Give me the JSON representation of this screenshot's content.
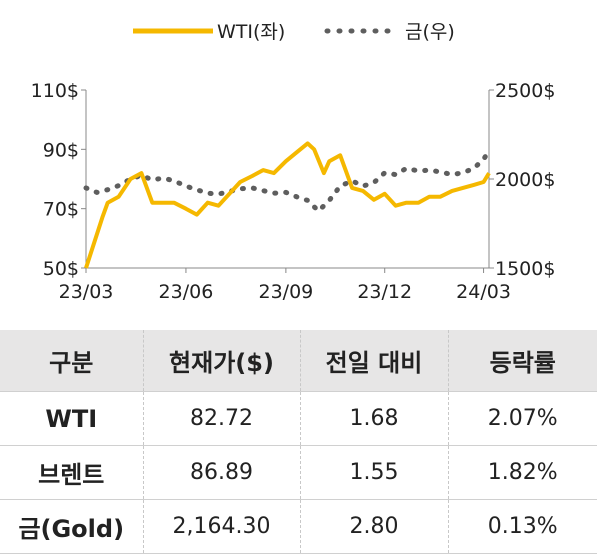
{
  "chart_data": {
    "type": "line",
    "x_ticks": [
      "23/03",
      "23/06",
      "23/09",
      "23/12",
      "24/03"
    ],
    "y_left": {
      "ticks": [
        "110$",
        "90$",
        "70$",
        "50$"
      ],
      "range": [
        50,
        110
      ]
    },
    "y_right": {
      "ticks": [
        "2500$",
        "2000$",
        "1500$"
      ],
      "range": [
        1500,
        2500
      ]
    },
    "colors": {
      "wti": "#f5b800",
      "gold": "#5e5e5e"
    },
    "series": [
      {
        "name": "WTI(좌)",
        "axis": "left",
        "x": [
          "23/03/01",
          "23/03/16",
          "23/03/21",
          "23/03/31",
          "23/04/11",
          "23/04/21",
          "23/05/01",
          "23/05/11",
          "23/05/21",
          "23/06/01",
          "23/06/11",
          "23/06/21",
          "23/07/01",
          "23/07/11",
          "23/07/21",
          "23/08/01",
          "23/08/11",
          "23/08/21",
          "23/09/01",
          "23/09/11",
          "23/09/21",
          "23/09/27",
          "23/10/06",
          "23/10/11",
          "23/10/21",
          "23/11/01",
          "23/11/11",
          "23/11/21",
          "23/12/01",
          "23/12/11",
          "23/12/21",
          "24/01/01",
          "24/01/11",
          "24/01/21",
          "24/02/01",
          "24/02/11",
          "24/02/21",
          "24/03/01",
          "24/03/06"
        ],
        "values": [
          50,
          67,
          72,
          74,
          80,
          82,
          72,
          72,
          72,
          70,
          68,
          72,
          71,
          75,
          79,
          81,
          83,
          82,
          86,
          89,
          92,
          90,
          82,
          86,
          88,
          77,
          76,
          73,
          75,
          71,
          72,
          72,
          74,
          74,
          76,
          77,
          78,
          79,
          82
        ]
      },
      {
        "name": "금(우)",
        "axis": "right",
        "x": [
          "23/03/01",
          "23/03/11",
          "23/03/21",
          "23/04/01",
          "23/04/11",
          "23/04/21",
          "23/05/01",
          "23/05/11",
          "23/05/21",
          "23/06/01",
          "23/06/11",
          "23/06/21",
          "23/07/01",
          "23/07/11",
          "23/07/21",
          "23/08/01",
          "23/08/11",
          "23/08/21",
          "23/09/01",
          "23/09/11",
          "23/09/21",
          "23/10/01",
          "23/10/11",
          "23/10/21",
          "23/11/01",
          "23/11/11",
          "23/11/21",
          "23/12/01",
          "23/12/11",
          "23/12/21",
          "24/01/01",
          "24/01/11",
          "24/01/21",
          "24/02/01",
          "24/02/11",
          "24/02/21",
          "24/03/01",
          "24/03/06"
        ],
        "values": [
          1950,
          1925,
          1940,
          1965,
          2000,
          2020,
          1995,
          2005,
          1990,
          1960,
          1940,
          1920,
          1915,
          1930,
          1945,
          1950,
          1935,
          1920,
          1925,
          1900,
          1880,
          1820,
          1880,
          1960,
          1990,
          1960,
          1980,
          2035,
          2025,
          2060,
          2045,
          2050,
          2040,
          2025,
          2035,
          2060,
          2110,
          2160
        ]
      }
    ]
  },
  "table": {
    "headers": [
      "구분",
      "현재가($)",
      "전일 대비",
      "등락률"
    ],
    "rows": [
      {
        "name": "WTI",
        "price": "82.72",
        "change": "1.68",
        "rate": "2.07%"
      },
      {
        "name": "브렌트",
        "price": "86.89",
        "change": "1.55",
        "rate": "1.82%"
      },
      {
        "name": "금(Gold)",
        "price": "2,164.30",
        "change": "2.80",
        "rate": "0.13%"
      }
    ]
  }
}
